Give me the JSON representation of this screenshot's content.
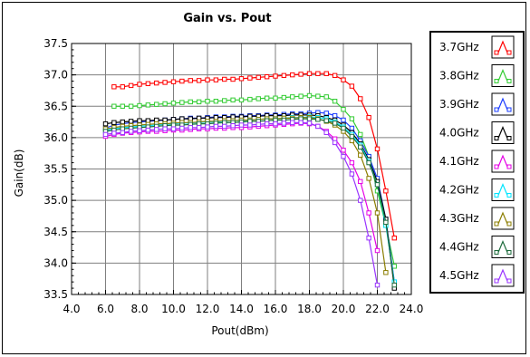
{
  "chart_data": {
    "type": "line",
    "title": "Gain vs. Pout",
    "xlabel": "Pout(dBm)",
    "ylabel": "Gain(dB)",
    "xlim": [
      4.0,
      24.0
    ],
    "ylim": [
      33.5,
      37.5
    ],
    "x_ticks": [
      "4.0",
      "6.0",
      "8.0",
      "10.0",
      "12.0",
      "14.0",
      "16.0",
      "18.0",
      "20.0",
      "22.0",
      "24.0"
    ],
    "y_ticks": [
      "33.5",
      "34.0",
      "34.5",
      "35.0",
      "35.5",
      "36.0",
      "36.5",
      "37.0",
      "37.5"
    ],
    "grid": true,
    "legend_position": "right",
    "series": [
      {
        "name": "3.7GHz",
        "color": "#ff0000",
        "x": [
          6.5,
          7.0,
          7.5,
          8.0,
          8.5,
          9.0,
          9.5,
          10.0,
          10.5,
          11.0,
          11.5,
          12.0,
          12.5,
          13.0,
          13.5,
          14.0,
          14.5,
          15.0,
          15.5,
          16.0,
          16.5,
          17.0,
          17.5,
          18.0,
          18.5,
          19.0,
          19.5,
          20.0,
          20.5,
          21.0,
          21.5,
          22.0,
          22.5,
          23.0
        ],
        "y": [
          36.81,
          36.81,
          36.83,
          36.85,
          36.86,
          36.87,
          36.88,
          36.89,
          36.9,
          36.91,
          36.91,
          36.92,
          36.92,
          36.93,
          36.93,
          36.94,
          36.95,
          36.96,
          36.97,
          36.98,
          36.99,
          37.0,
          37.01,
          37.02,
          37.02,
          37.02,
          36.99,
          36.92,
          36.82,
          36.62,
          36.32,
          35.82,
          35.15,
          34.4
        ]
      },
      {
        "name": "3.8GHz",
        "color": "#33cc33",
        "x": [
          6.5,
          7.0,
          7.5,
          8.0,
          8.5,
          9.0,
          9.5,
          10.0,
          10.5,
          11.0,
          11.5,
          12.0,
          12.5,
          13.0,
          13.5,
          14.0,
          14.5,
          15.0,
          15.5,
          16.0,
          16.5,
          17.0,
          17.5,
          18.0,
          18.5,
          19.0,
          19.5,
          20.0,
          20.5,
          21.0,
          21.5,
          22.0,
          22.5,
          23.0
        ],
        "y": [
          36.5,
          36.5,
          36.5,
          36.51,
          36.52,
          36.53,
          36.54,
          36.55,
          36.56,
          36.57,
          36.57,
          36.58,
          36.58,
          36.59,
          36.6,
          36.6,
          36.61,
          36.62,
          36.63,
          36.63,
          36.64,
          36.65,
          36.66,
          36.67,
          36.66,
          36.65,
          36.58,
          36.45,
          36.3,
          36.05,
          35.7,
          35.15,
          34.6,
          33.95
        ]
      },
      {
        "name": "3.9GHz",
        "color": "#1a3cff",
        "x": [
          6.0,
          6.5,
          7.0,
          7.5,
          8.0,
          8.5,
          9.0,
          9.5,
          10.0,
          10.5,
          11.0,
          11.5,
          12.0,
          12.5,
          13.0,
          13.5,
          14.0,
          14.5,
          15.0,
          15.5,
          16.0,
          16.5,
          17.0,
          17.5,
          18.0,
          18.5,
          19.0,
          19.5,
          20.0,
          20.5,
          21.0,
          21.5,
          22.0,
          22.5,
          23.0
        ],
        "y": [
          36.15,
          36.2,
          36.22,
          36.24,
          36.25,
          36.26,
          36.27,
          36.28,
          36.29,
          36.3,
          36.31,
          36.31,
          36.32,
          36.33,
          36.33,
          36.34,
          36.34,
          36.35,
          36.35,
          36.36,
          36.36,
          36.37,
          36.38,
          36.38,
          36.39,
          36.4,
          36.39,
          36.35,
          36.28,
          36.15,
          35.95,
          35.7,
          35.35,
          34.7,
          33.7
        ]
      },
      {
        "name": "4.0GHz",
        "color": "#000000",
        "x": [
          6.0,
          6.5,
          7.0,
          7.5,
          8.0,
          8.5,
          9.0,
          9.5,
          10.0,
          10.5,
          11.0,
          11.5,
          12.0,
          12.5,
          13.0,
          13.5,
          14.0,
          14.5,
          15.0,
          15.5,
          16.0,
          16.5,
          17.0,
          17.5,
          18.0,
          18.5,
          19.0,
          19.5,
          20.0,
          20.5,
          21.0,
          21.5,
          22.0,
          22.5,
          23.0
        ],
        "y": [
          36.22,
          36.24,
          36.25,
          36.26,
          36.27,
          36.27,
          36.28,
          36.28,
          36.29,
          36.3,
          36.3,
          36.31,
          36.31,
          36.32,
          36.32,
          36.33,
          36.33,
          36.34,
          36.34,
          36.35,
          36.35,
          36.35,
          36.36,
          36.36,
          36.36,
          36.35,
          36.32,
          36.28,
          36.2,
          36.08,
          35.9,
          35.65,
          35.3,
          34.7,
          33.6
        ]
      },
      {
        "name": "4.1GHz",
        "color": "#e600e6",
        "x": [
          6.0,
          6.5,
          7.0,
          7.5,
          8.0,
          8.5,
          9.0,
          9.5,
          10.0,
          10.5,
          11.0,
          11.5,
          12.0,
          12.5,
          13.0,
          13.5,
          14.0,
          14.5,
          15.0,
          15.5,
          16.0,
          16.5,
          17.0,
          17.5,
          18.0,
          18.5,
          19.0,
          19.5,
          20.0,
          20.5,
          21.0,
          21.5,
          22.0
        ],
        "y": [
          36.02,
          36.05,
          36.07,
          36.08,
          36.09,
          36.1,
          36.1,
          36.11,
          36.12,
          36.12,
          36.13,
          36.14,
          36.14,
          36.15,
          36.15,
          36.16,
          36.16,
          36.17,
          36.18,
          36.19,
          36.2,
          36.21,
          36.22,
          36.23,
          36.22,
          36.18,
          36.1,
          35.98,
          35.8,
          35.6,
          35.3,
          34.8,
          34.2
        ]
      },
      {
        "name": "4.2GHz",
        "color": "#00e5ff",
        "x": [
          6.0,
          6.5,
          7.0,
          7.5,
          8.0,
          8.5,
          9.0,
          9.5,
          10.0,
          10.5,
          11.0,
          11.5,
          12.0,
          12.5,
          13.0,
          13.5,
          14.0,
          14.5,
          15.0,
          15.5,
          16.0,
          16.5,
          17.0,
          17.5,
          18.0,
          18.5,
          19.0,
          19.5,
          20.0,
          20.5,
          21.0,
          21.5,
          22.0,
          22.5,
          23.0
        ],
        "y": [
          36.12,
          36.14,
          36.16,
          36.17,
          36.18,
          36.19,
          36.2,
          36.21,
          36.22,
          36.23,
          36.23,
          36.24,
          36.25,
          36.25,
          36.26,
          36.27,
          36.27,
          36.28,
          36.29,
          36.3,
          36.3,
          36.31,
          36.32,
          36.32,
          36.33,
          36.32,
          36.3,
          36.25,
          36.17,
          36.05,
          35.88,
          35.62,
          35.25,
          34.6,
          33.7
        ]
      },
      {
        "name": "4.3GHz",
        "color": "#8b7d00",
        "x": [
          6.0,
          6.5,
          7.0,
          7.5,
          8.0,
          8.5,
          9.0,
          9.5,
          10.0,
          10.5,
          11.0,
          11.5,
          12.0,
          12.5,
          13.0,
          13.5,
          14.0,
          14.5,
          15.0,
          15.5,
          16.0,
          16.5,
          17.0,
          17.5,
          18.0,
          18.5,
          19.0,
          19.5,
          20.0,
          20.5,
          21.0,
          21.5,
          22.0,
          22.5
        ],
        "y": [
          36.14,
          36.16,
          36.18,
          36.19,
          36.2,
          36.21,
          36.22,
          36.22,
          36.23,
          36.24,
          36.24,
          36.25,
          36.26,
          36.26,
          36.27,
          36.27,
          36.28,
          36.28,
          36.29,
          36.3,
          36.3,
          36.31,
          36.31,
          36.32,
          36.32,
          36.3,
          36.26,
          36.2,
          36.1,
          35.95,
          35.72,
          35.35,
          34.8,
          33.85
        ]
      },
      {
        "name": "4.4GHz",
        "color": "#1e6b3c",
        "x": [
          6.0,
          6.5,
          7.0,
          7.5,
          8.0,
          8.5,
          9.0,
          9.5,
          10.0,
          10.5,
          11.0,
          11.5,
          12.0,
          12.5,
          13.0,
          13.5,
          14.0,
          14.5,
          15.0,
          15.5,
          16.0,
          16.5,
          17.0,
          17.5,
          18.0,
          18.5,
          19.0,
          19.5,
          20.0,
          20.5,
          21.0,
          21.5,
          22.0,
          22.5,
          23.0
        ],
        "y": [
          36.1,
          36.12,
          36.14,
          36.15,
          36.16,
          36.17,
          36.18,
          36.19,
          36.2,
          36.2,
          36.21,
          36.22,
          36.22,
          36.23,
          36.24,
          36.24,
          36.25,
          36.26,
          36.26,
          36.27,
          36.28,
          36.28,
          36.29,
          36.3,
          36.3,
          36.29,
          36.27,
          36.23,
          36.15,
          36.02,
          35.85,
          35.6,
          35.25,
          34.65,
          33.65
        ]
      },
      {
        "name": "4.5GHz",
        "color": "#9933ff",
        "x": [
          6.0,
          6.5,
          7.0,
          7.5,
          8.0,
          8.5,
          9.0,
          9.5,
          10.0,
          10.5,
          11.0,
          11.5,
          12.0,
          12.5,
          13.0,
          13.5,
          14.0,
          14.5,
          15.0,
          15.5,
          16.0,
          16.5,
          17.0,
          17.5,
          18.0,
          18.5,
          19.0,
          19.5,
          20.0,
          20.5,
          21.0,
          21.5,
          22.0
        ],
        "y": [
          36.05,
          36.07,
          36.08,
          36.1,
          36.11,
          36.12,
          36.13,
          36.14,
          36.14,
          36.15,
          36.16,
          36.16,
          36.17,
          36.18,
          36.18,
          36.19,
          36.2,
          36.2,
          36.21,
          36.22,
          36.22,
          36.23,
          36.24,
          36.24,
          36.23,
          36.18,
          36.08,
          35.92,
          35.7,
          35.42,
          35.0,
          34.4,
          33.65
        ]
      }
    ]
  }
}
